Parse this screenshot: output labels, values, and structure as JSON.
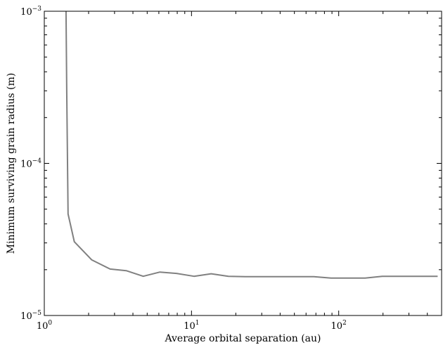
{
  "chart_data": {
    "type": "line",
    "title": "",
    "xlabel": "Average orbital separation (au)",
    "ylabel": "Minimum surviving grain radius (m)",
    "x_scale": "log",
    "y_scale": "log",
    "xlim": [
      1,
      500
    ],
    "ylim": [
      1e-05,
      0.001
    ],
    "grid": false,
    "legend": "none",
    "x_ticks": [
      {
        "value": 1,
        "base": "10",
        "exp": "0"
      },
      {
        "value": 10,
        "base": "10",
        "exp": "1"
      },
      {
        "value": 100,
        "base": "10",
        "exp": "2"
      }
    ],
    "y_ticks": [
      {
        "value": 1e-05,
        "base": "10",
        "exp": "−5"
      },
      {
        "value": 0.0001,
        "base": "10",
        "exp": "−4"
      },
      {
        "value": 0.001,
        "base": "10",
        "exp": "−3"
      }
    ],
    "series": [
      {
        "color": "#808080",
        "x": [
          1.405,
          1.42,
          1.45,
          1.6,
          2.1,
          2.8,
          3.6,
          4.7,
          6.1,
          7.9,
          10.4,
          13.6,
          17.8,
          23.3,
          30.4,
          39.7,
          51.9,
          67.8,
          88.6,
          115.8,
          151.3,
          197.7,
          258.4,
          337.6,
          441.2,
          470
        ],
        "y": [
          0.001,
          0.0003,
          4.65e-05,
          3.05e-05,
          2.32e-05,
          2.02e-05,
          1.97e-05,
          1.81e-05,
          1.93e-05,
          1.89e-05,
          1.81e-05,
          1.88e-05,
          1.81e-05,
          1.8e-05,
          1.8e-05,
          1.8e-05,
          1.8e-05,
          1.8e-05,
          1.76e-05,
          1.76e-05,
          1.76e-05,
          1.81e-05,
          1.81e-05,
          1.81e-05,
          1.81e-05,
          1.81e-05
        ]
      }
    ]
  }
}
